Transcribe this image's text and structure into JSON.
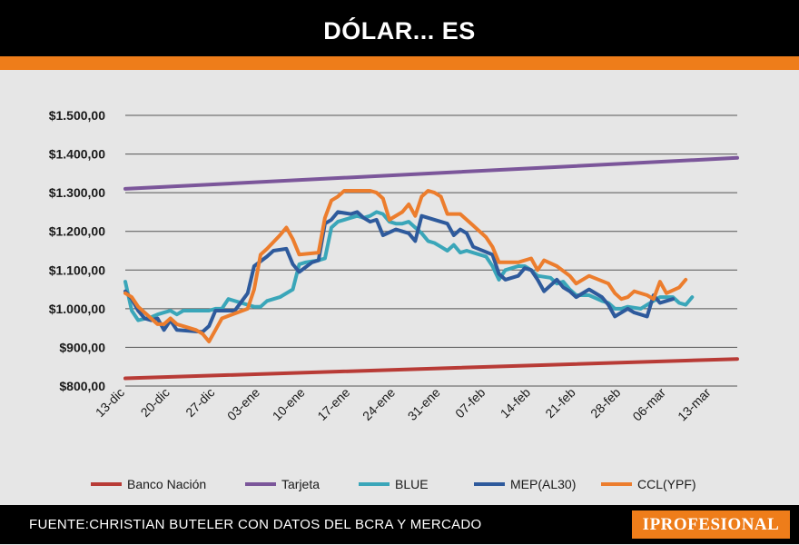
{
  "header": {
    "title": "DÓLAR... ES"
  },
  "footer": {
    "source": "FUENTE:CHRISTIAN BUTELER CON DATOS DEL BCRA Y MERCADO",
    "brand": "IPROFESIONAL"
  },
  "colors": {
    "header_bg": "#000000",
    "accent": "#ee7d1a",
    "background": "#e6e6e6"
  },
  "chart_data": {
    "type": "line",
    "title": "DÓLAR... ES",
    "xlabel": "",
    "ylabel": "",
    "ylim": [
      800,
      1500
    ],
    "grid": true,
    "legend_position": "bottom",
    "y_ticks": [
      "$800,00",
      "$900,00",
      "$1.000,00",
      "$1.100,00",
      "$1.200,00",
      "$1.300,00",
      "$1.400,00",
      "$1.500,00"
    ],
    "y_tick_values": [
      800,
      900,
      1000,
      1100,
      1200,
      1300,
      1400,
      1500
    ],
    "x_ticks": [
      "13-dic",
      "20-dic",
      "27-dic",
      "03-ene",
      "10-ene",
      "17-ene",
      "24-ene",
      "31-ene",
      "07-feb",
      "14-feb",
      "21-feb",
      "28-feb",
      "06-mar",
      "13-mar"
    ],
    "x_tick_days": [
      0,
      7,
      14,
      21,
      28,
      35,
      42,
      49,
      56,
      63,
      70,
      77,
      84,
      91
    ],
    "x_range_days": [
      0,
      95
    ],
    "series": [
      {
        "name": "Banco Nación",
        "color": "#b83b36",
        "points": [
          [
            0,
            820
          ],
          [
            95,
            870
          ]
        ]
      },
      {
        "name": "Tarjeta",
        "color": "#7b569a",
        "points": [
          [
            0,
            1310
          ],
          [
            95,
            1390
          ]
        ]
      },
      {
        "name": "BLUE",
        "color": "#3aa6b9",
        "points": [
          [
            0,
            1070
          ],
          [
            1,
            995
          ],
          [
            2,
            970
          ],
          [
            4,
            978
          ],
          [
            5,
            985
          ],
          [
            6,
            990
          ],
          [
            7,
            995
          ],
          [
            8,
            985
          ],
          [
            9,
            995
          ],
          [
            13,
            995
          ],
          [
            14,
            1000
          ],
          [
            15,
            1000
          ],
          [
            16,
            1025
          ],
          [
            20,
            1005
          ],
          [
            21,
            1005
          ],
          [
            22,
            1020
          ],
          [
            24,
            1030
          ],
          [
            26,
            1050
          ],
          [
            27,
            1115
          ],
          [
            28,
            1120
          ],
          [
            30,
            1125
          ],
          [
            31,
            1130
          ],
          [
            32,
            1210
          ],
          [
            33,
            1225
          ],
          [
            35,
            1235
          ],
          [
            36,
            1240
          ],
          [
            37,
            1235
          ],
          [
            38,
            1240
          ],
          [
            39,
            1250
          ],
          [
            40,
            1245
          ],
          [
            41,
            1225
          ],
          [
            42,
            1220
          ],
          [
            43,
            1220
          ],
          [
            44,
            1225
          ],
          [
            45,
            1210
          ],
          [
            46,
            1195
          ],
          [
            47,
            1175
          ],
          [
            48,
            1170
          ],
          [
            49,
            1160
          ],
          [
            50,
            1150
          ],
          [
            51,
            1165
          ],
          [
            52,
            1145
          ],
          [
            53,
            1150
          ],
          [
            55,
            1140
          ],
          [
            56,
            1135
          ],
          [
            57,
            1110
          ],
          [
            58,
            1075
          ],
          [
            59,
            1100
          ],
          [
            61,
            1110
          ],
          [
            62,
            1110
          ],
          [
            63,
            1100
          ],
          [
            64,
            1085
          ],
          [
            66,
            1080
          ],
          [
            67,
            1065
          ],
          [
            68,
            1070
          ],
          [
            69,
            1050
          ],
          [
            70,
            1035
          ],
          [
            72,
            1035
          ],
          [
            74,
            1020
          ],
          [
            75,
            1015
          ],
          [
            76,
            1000
          ],
          [
            77,
            1000
          ],
          [
            78,
            1005
          ],
          [
            80,
            1000
          ],
          [
            81,
            1010
          ],
          [
            83,
            1030
          ],
          [
            85,
            1030
          ],
          [
            86,
            1015
          ],
          [
            87,
            1010
          ],
          [
            88,
            1030
          ]
        ]
      },
      {
        "name": "MEP(AL30)",
        "color": "#2e5a9c",
        "points": [
          [
            0,
            1045
          ],
          [
            1,
            1025
          ],
          [
            2,
            995
          ],
          [
            3,
            975
          ],
          [
            4,
            970
          ],
          [
            5,
            975
          ],
          [
            6,
            945
          ],
          [
            7,
            970
          ],
          [
            8,
            945
          ],
          [
            12,
            940
          ],
          [
            13,
            955
          ],
          [
            14,
            995
          ],
          [
            17,
            995
          ],
          [
            19,
            1040
          ],
          [
            20,
            1110
          ],
          [
            22,
            1135
          ],
          [
            23,
            1150
          ],
          [
            25,
            1155
          ],
          [
            26,
            1115
          ],
          [
            27,
            1095
          ],
          [
            29,
            1120
          ],
          [
            30,
            1125
          ],
          [
            31,
            1220
          ],
          [
            32,
            1230
          ],
          [
            33,
            1250
          ],
          [
            35,
            1245
          ],
          [
            36,
            1250
          ],
          [
            37,
            1235
          ],
          [
            38,
            1225
          ],
          [
            39,
            1230
          ],
          [
            40,
            1190
          ],
          [
            42,
            1205
          ],
          [
            44,
            1195
          ],
          [
            45,
            1175
          ],
          [
            46,
            1240
          ],
          [
            48,
            1230
          ],
          [
            50,
            1220
          ],
          [
            51,
            1190
          ],
          [
            52,
            1205
          ],
          [
            53,
            1195
          ],
          [
            54,
            1160
          ],
          [
            57,
            1140
          ],
          [
            58,
            1090
          ],
          [
            59,
            1075
          ],
          [
            61,
            1085
          ],
          [
            62,
            1105
          ],
          [
            63,
            1100
          ],
          [
            64,
            1075
          ],
          [
            65,
            1045
          ],
          [
            67,
            1075
          ],
          [
            68,
            1055
          ],
          [
            69,
            1045
          ],
          [
            70,
            1030
          ],
          [
            72,
            1050
          ],
          [
            74,
            1030
          ],
          [
            75,
            1010
          ],
          [
            76,
            980
          ],
          [
            78,
            1000
          ],
          [
            79,
            990
          ],
          [
            81,
            980
          ],
          [
            82,
            1035
          ],
          [
            83,
            1015
          ],
          [
            84,
            1020
          ],
          [
            85,
            1025
          ]
        ]
      },
      {
        "name": "CCL(YPF)",
        "color": "#ec7d2d",
        "points": [
          [
            0,
            1040
          ],
          [
            1,
            1030
          ],
          [
            2,
            1005
          ],
          [
            4,
            975
          ],
          [
            5,
            960
          ],
          [
            6,
            960
          ],
          [
            7,
            975
          ],
          [
            8,
            960
          ],
          [
            11,
            945
          ],
          [
            12,
            935
          ],
          [
            13,
            915
          ],
          [
            14,
            945
          ],
          [
            15,
            975
          ],
          [
            19,
            1000
          ],
          [
            20,
            1050
          ],
          [
            21,
            1140
          ],
          [
            22,
            1155
          ],
          [
            24,
            1190
          ],
          [
            25,
            1210
          ],
          [
            26,
            1180
          ],
          [
            27,
            1140
          ],
          [
            30,
            1145
          ],
          [
            31,
            1235
          ],
          [
            32,
            1280
          ],
          [
            33,
            1290
          ],
          [
            34,
            1305
          ],
          [
            38,
            1305
          ],
          [
            39,
            1300
          ],
          [
            40,
            1285
          ],
          [
            41,
            1230
          ],
          [
            43,
            1250
          ],
          [
            44,
            1270
          ],
          [
            45,
            1240
          ],
          [
            46,
            1290
          ],
          [
            47,
            1305
          ],
          [
            48,
            1300
          ],
          [
            49,
            1290
          ],
          [
            50,
            1245
          ],
          [
            52,
            1245
          ],
          [
            54,
            1215
          ],
          [
            55,
            1200
          ],
          [
            56,
            1185
          ],
          [
            57,
            1160
          ],
          [
            58,
            1120
          ],
          [
            61,
            1120
          ],
          [
            62,
            1125
          ],
          [
            63,
            1130
          ],
          [
            64,
            1100
          ],
          [
            65,
            1125
          ],
          [
            67,
            1110
          ],
          [
            69,
            1085
          ],
          [
            70,
            1065
          ],
          [
            72,
            1085
          ],
          [
            75,
            1065
          ],
          [
            76,
            1040
          ],
          [
            77,
            1025
          ],
          [
            78,
            1030
          ],
          [
            79,
            1045
          ],
          [
            81,
            1035
          ],
          [
            82,
            1025
          ],
          [
            83,
            1070
          ],
          [
            84,
            1040
          ],
          [
            86,
            1055
          ],
          [
            87,
            1075
          ]
        ]
      }
    ]
  }
}
